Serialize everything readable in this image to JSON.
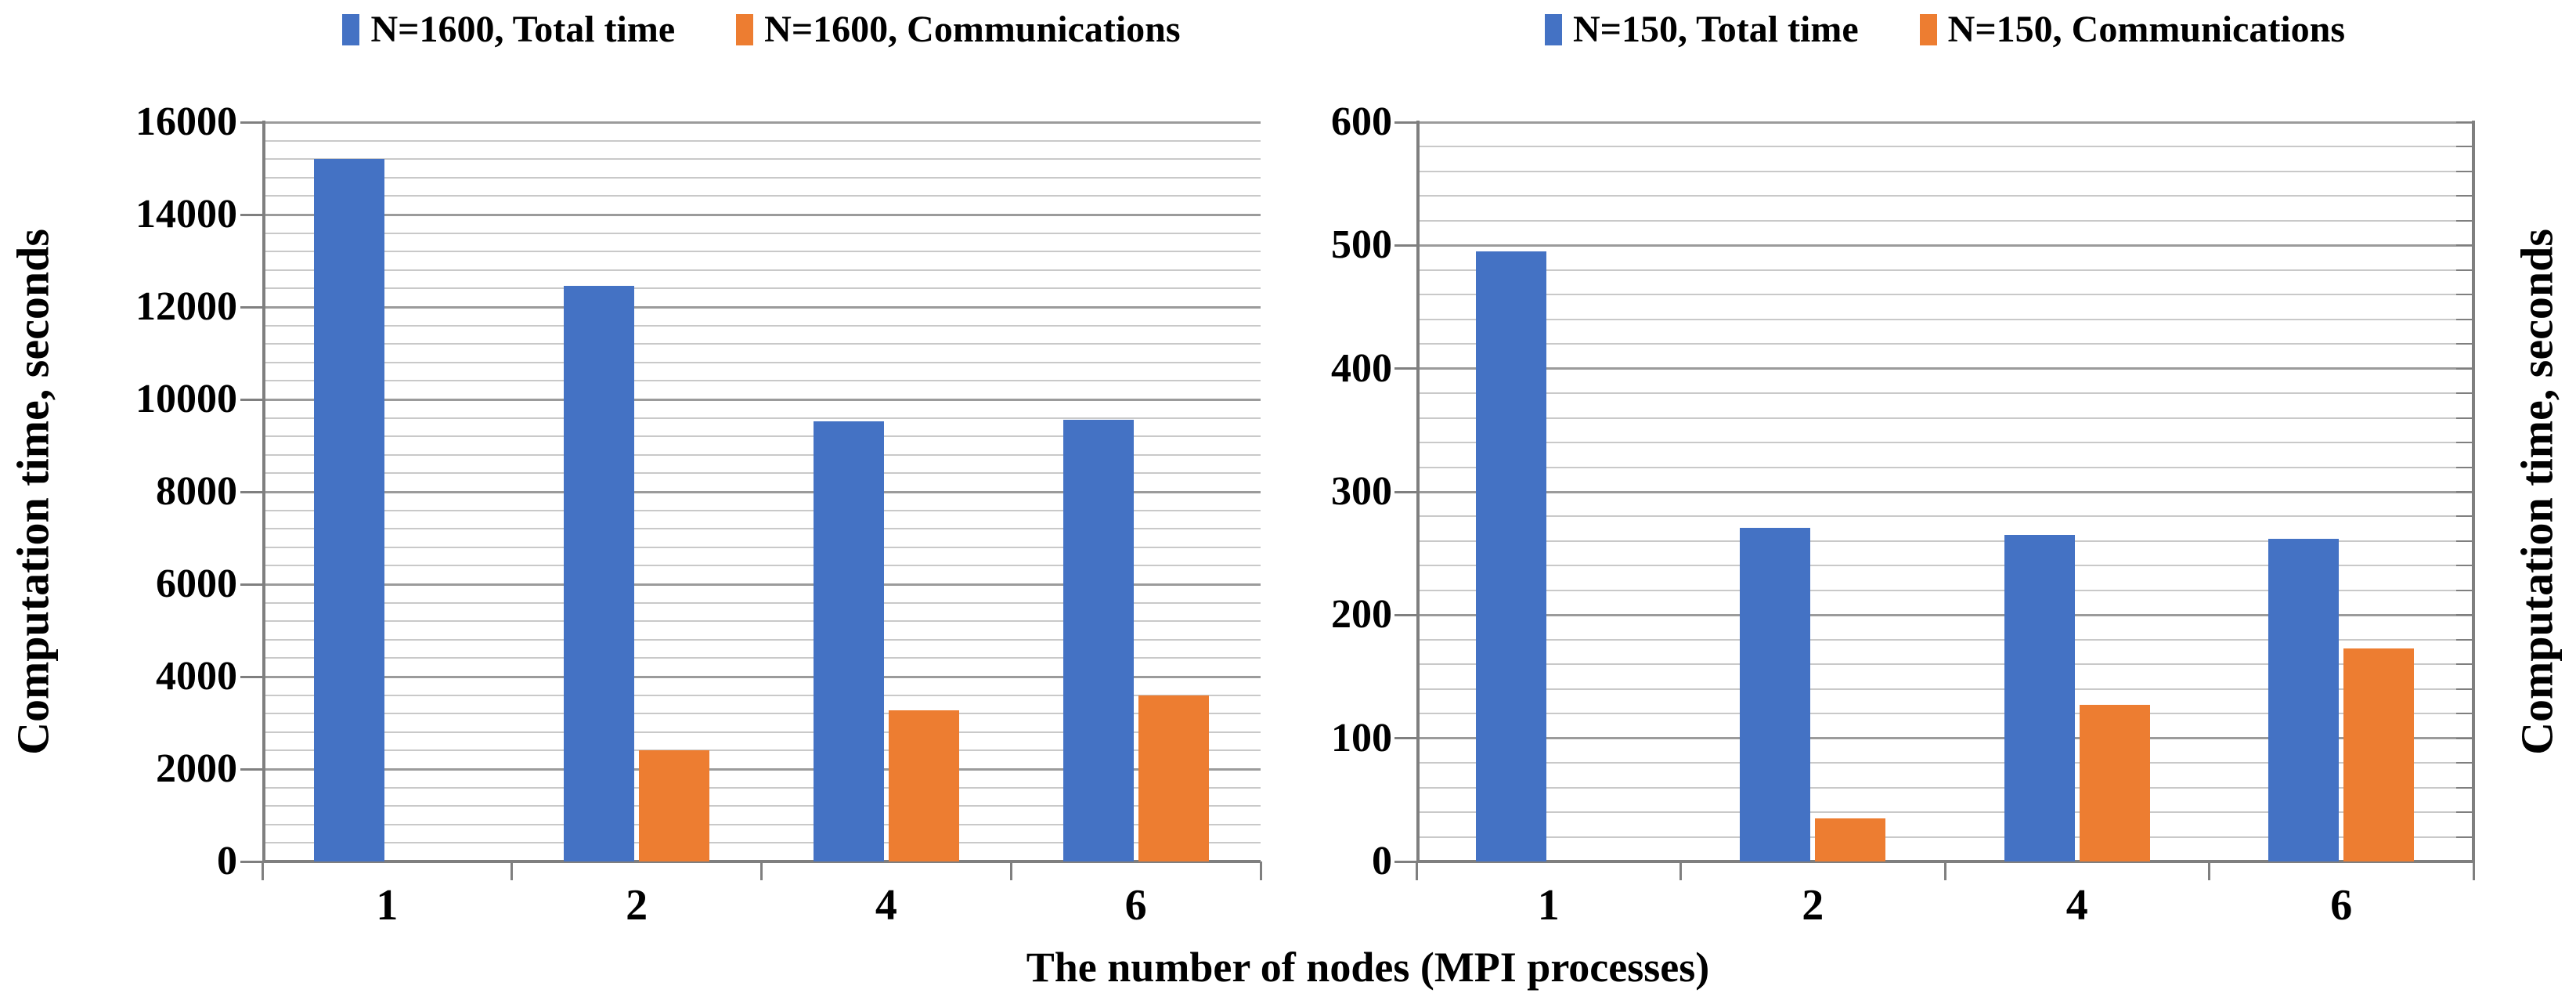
{
  "figure": {
    "x_axis_title": "The number of nodes (MPI processes)",
    "colors": {
      "series1": "#4472C4",
      "series2": "#ED7D31",
      "grid_minor": "#C9C9C9",
      "grid_major": "#9B9B9B",
      "axis": "#7F7F7F",
      "text": "#000000"
    }
  },
  "chart_data": [
    {
      "type": "bar",
      "title": "",
      "categories": [
        "1",
        "2",
        "4",
        "6"
      ],
      "series": [
        {
          "name": "N=1600, Total time",
          "color_key": "series1",
          "values": [
            15200,
            12450,
            9520,
            9560
          ]
        },
        {
          "name": "N=1600, Communications",
          "color_key": "series2",
          "values": [
            0,
            2400,
            3270,
            3590
          ]
        }
      ],
      "ylabel": "Computation time, seconds",
      "ylabel_side": "left",
      "xlabel": "The number of nodes (MPI processes)",
      "ylim": [
        0,
        16000
      ],
      "major_step": 2000,
      "minor_step": 400,
      "grid": true,
      "legend_position": "top"
    },
    {
      "type": "bar",
      "title": "",
      "categories": [
        "1",
        "2",
        "4",
        "6"
      ],
      "series": [
        {
          "name": "N=150, Total time",
          "color_key": "series1",
          "values": [
            495,
            271,
            265,
            262
          ]
        },
        {
          "name": "N=150, Communications",
          "color_key": "series2",
          "values": [
            0,
            35,
            127,
            173
          ]
        }
      ],
      "ylabel": "Computation time, seconds",
      "ylabel_side": "right",
      "xlabel": "The number of nodes (MPI processes)",
      "ylim": [
        0,
        600
      ],
      "major_step": 100,
      "minor_step": 20,
      "grid": true,
      "legend_position": "top"
    }
  ]
}
